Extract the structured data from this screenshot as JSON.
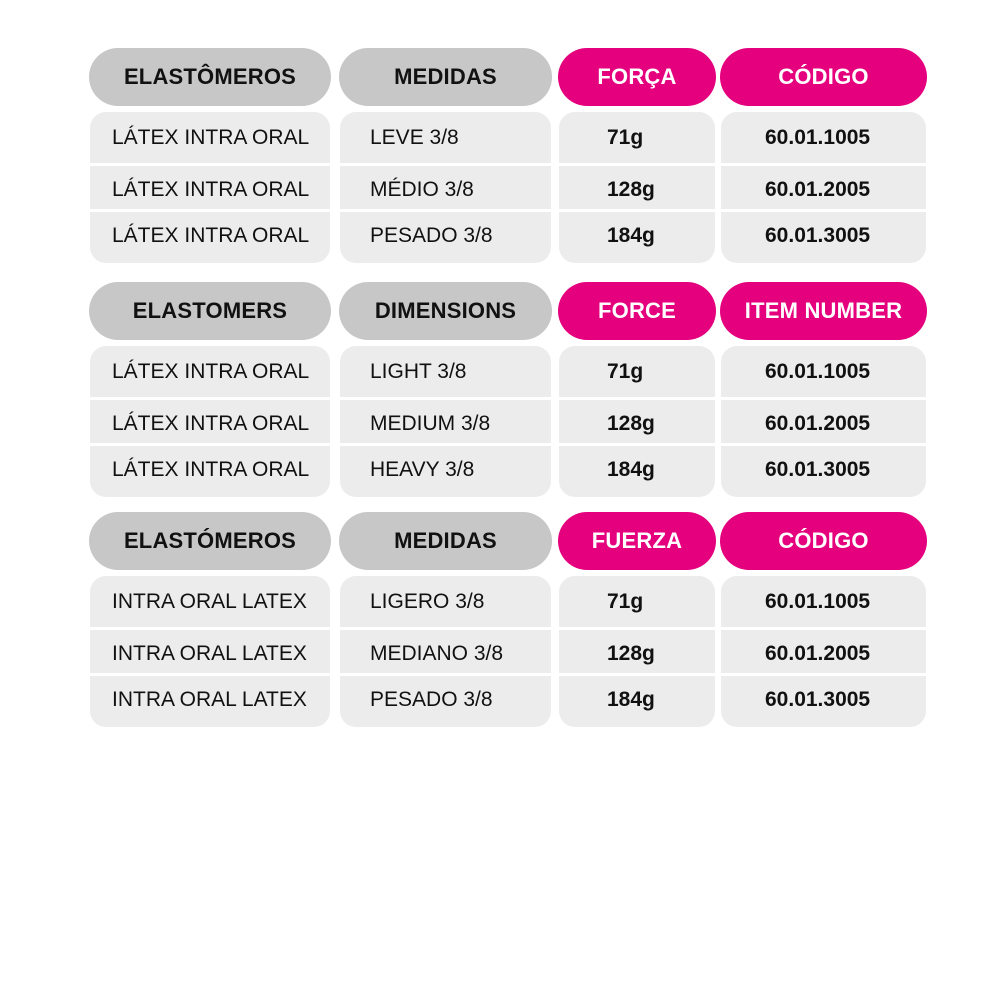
{
  "colors": {
    "grey_header": "#c7c7c7",
    "pink_header": "#e5007e",
    "cell_background": "#ececec",
    "divider": "#ffffff"
  },
  "tables": [
    {
      "headers": [
        "ELASTÔMEROS",
        "MEDIDAS",
        "FORÇA",
        "CÓDIGO"
      ],
      "rows": [
        [
          "LÁTEX INTRA ORAL",
          "LEVE 3/8",
          "71g",
          "60.01.1005"
        ],
        [
          "LÁTEX INTRA ORAL",
          "MÉDIO 3/8",
          "128g",
          "60.01.2005"
        ],
        [
          "LÁTEX INTRA ORAL",
          "PESADO 3/8",
          "184g",
          "60.01.3005"
        ]
      ]
    },
    {
      "headers": [
        "ELASTOMERS",
        "DIMENSIONS",
        "FORCE",
        "ITEM NUMBER"
      ],
      "rows": [
        [
          "LÁTEX INTRA ORAL",
          "LIGHT 3/8",
          "71g",
          "60.01.1005"
        ],
        [
          "LÁTEX INTRA ORAL",
          "MEDIUM 3/8",
          "128g",
          "60.01.2005"
        ],
        [
          "LÁTEX INTRA ORAL",
          "HEAVY 3/8",
          "184g",
          "60.01.3005"
        ]
      ]
    },
    {
      "headers": [
        "ELASTÓMEROS",
        "MEDIDAS",
        "FUERZA",
        "CÓDIGO"
      ],
      "rows": [
        [
          "INTRA ORAL LATEX",
          "LIGERO 3/8",
          "71g",
          "60.01.1005"
        ],
        [
          "INTRA ORAL LATEX",
          "MEDIANO 3/8",
          "128g",
          "60.01.2005"
        ],
        [
          "INTRA ORAL LATEX",
          "PESADO 3/8",
          "184g",
          "60.01.3005"
        ]
      ]
    }
  ]
}
